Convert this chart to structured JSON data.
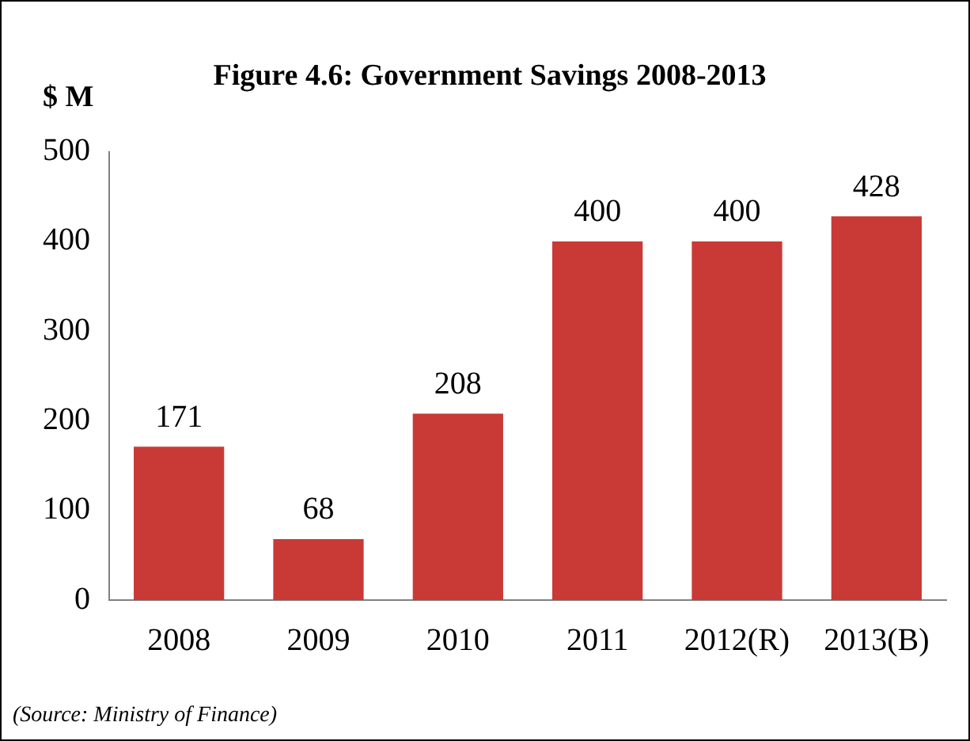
{
  "chart_data": {
    "type": "bar",
    "title": "Figure 4.6: Government Savings 2008-2013",
    "ylabel": "$ M",
    "categories": [
      "2008",
      "2009",
      "2010",
      "2011",
      "2012(R)",
      "2013(B)"
    ],
    "values": [
      171,
      68,
      208,
      400,
      400,
      428
    ],
    "color": "#c93a36",
    "ylim": [
      0,
      500
    ],
    "yticks": [
      0,
      100,
      200,
      300,
      400,
      500
    ],
    "grid": false,
    "data_labels": true,
    "annotations": [
      "(Source: Ministry of Finance)"
    ]
  }
}
